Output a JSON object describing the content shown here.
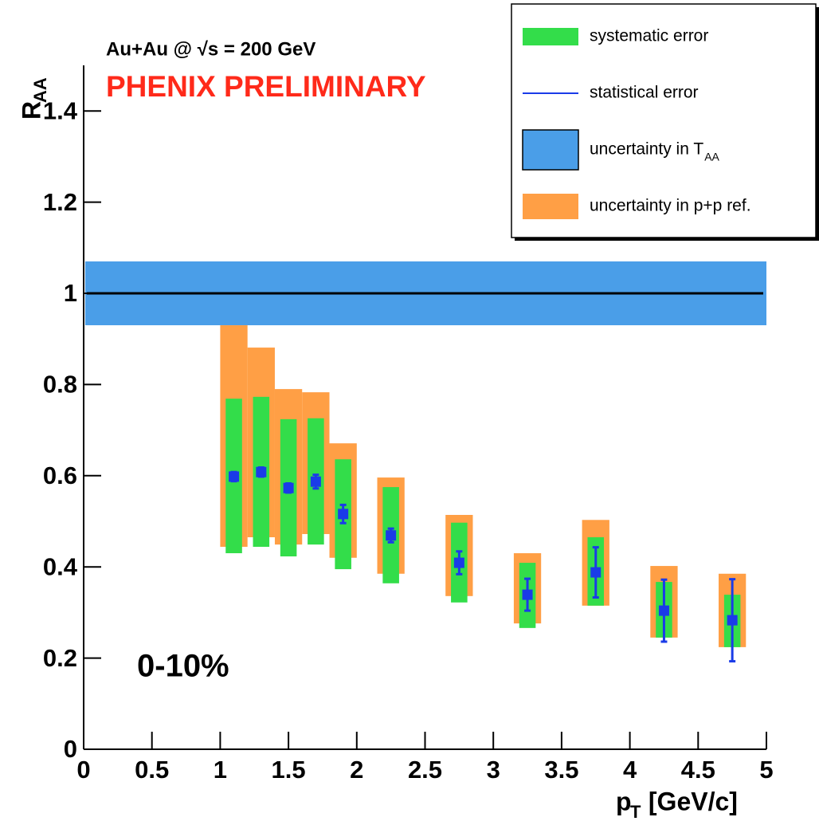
{
  "chart_data": {
    "type": "scatter",
    "title": "Au+Au @ √s = 200 GeV",
    "subtitle": "PHENIX PRELIMINARY",
    "annotation": "0-10%",
    "y_label": "R",
    "y_label_sub": "AA",
    "x_label": "p",
    "x_label_sub": "T",
    "x_label_rest": " [GeV/c]",
    "xlim": [
      0,
      5
    ],
    "ylim": [
      0,
      1.5
    ],
    "xticks": [
      0,
      0.5,
      1,
      1.5,
      2,
      2.5,
      3,
      3.5,
      4,
      4.5,
      5
    ],
    "yticks": [
      0,
      0.2,
      0.4,
      0.6,
      0.8,
      1,
      1.2,
      1.4
    ],
    "reference_line": 1,
    "legend": "top-right",
    "x": [
      1.1,
      1.3,
      1.5,
      1.7,
      1.9,
      2.25,
      2.75,
      3.25,
      3.75,
      4.25,
      4.75
    ],
    "series": [
      {
        "name": "systematic error",
        "style": "box",
        "color": "#33dd4a",
        "low": [
          0.43,
          0.444,
          0.423,
          0.449,
          0.395,
          0.364,
          0.322,
          0.266,
          0.315,
          0.245,
          0.224
        ],
        "high": [
          0.769,
          0.773,
          0.724,
          0.726,
          0.636,
          0.575,
          0.497,
          0.409,
          0.465,
          0.367,
          0.339
        ]
      },
      {
        "name": "statistical error",
        "style": "points",
        "color": "#1a3be8",
        "values": [
          0.598,
          0.608,
          0.573,
          0.587,
          0.516,
          0.469,
          0.409,
          0.339,
          0.388,
          0.304,
          0.283
        ],
        "errors": [
          0.01,
          0.01,
          0.01,
          0.015,
          0.02,
          0.015,
          0.025,
          0.035,
          0.055,
          0.068,
          0.09
        ]
      },
      {
        "name": "uncertainty in T",
        "name_sub": "AA",
        "style": "band",
        "color": "#4a9ee8",
        "low": 0.93,
        "high": 1.07
      },
      {
        "name": "uncertainty in p+p ref.",
        "style": "box",
        "color": "#ff9f45",
        "low": [
          0.444,
          0.465,
          0.449,
          0.472,
          0.42,
          0.385,
          0.336,
          0.276,
          0.315,
          0.245,
          0.224
        ],
        "high": [
          0.93,
          0.881,
          0.79,
          0.783,
          0.671,
          0.596,
          0.514,
          0.43,
          0.503,
          0.402,
          0.385
        ]
      }
    ]
  }
}
